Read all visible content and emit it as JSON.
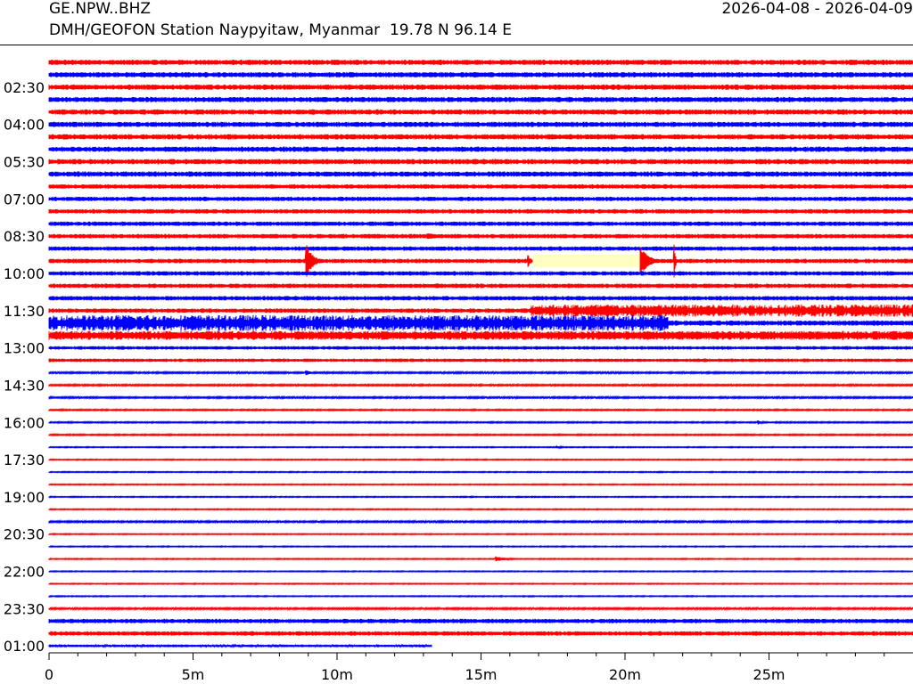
{
  "header": {
    "station_code": "GE.NPW..BHZ",
    "date_range": "2026-04-08 - 2026-04-09",
    "station_description": "DMH/GEOFON Station Naypyitaw, Myanmar  19.78 N 96.14 E"
  },
  "colors": {
    "even_trace": "#ff0000",
    "odd_trace": "#0000ff",
    "gap_highlight": "#ffffc0",
    "axis": "#000000"
  },
  "chart_data": {
    "type": "line",
    "subtype": "helicorder",
    "title": "",
    "xlabel": "",
    "ylabel": "",
    "x_range_minutes": [
      0,
      30
    ],
    "x_ticks": [
      {
        "value": 0,
        "label": "0"
      },
      {
        "value": 5,
        "label": "5m"
      },
      {
        "value": 10,
        "label": "10m"
      },
      {
        "value": 15,
        "label": "15m"
      },
      {
        "value": 20,
        "label": "20m"
      },
      {
        "value": 25,
        "label": "25m"
      }
    ],
    "minor_tick_step_minutes": 1,
    "trace_count": 48,
    "last_trace_end_minutes": 13.3,
    "row_labels": [
      {
        "row": 2,
        "label": "02:30"
      },
      {
        "row": 5,
        "label": "04:00"
      },
      {
        "row": 8,
        "label": "05:30"
      },
      {
        "row": 11,
        "label": "07:00"
      },
      {
        "row": 14,
        "label": "08:30"
      },
      {
        "row": 17,
        "label": "10:00"
      },
      {
        "row": 20,
        "label": "11:30"
      },
      {
        "row": 23,
        "label": "13:00"
      },
      {
        "row": 26,
        "label": "14:30"
      },
      {
        "row": 29,
        "label": "16:00"
      },
      {
        "row": 32,
        "label": "17:30"
      },
      {
        "row": 35,
        "label": "19:00"
      },
      {
        "row": 38,
        "label": "20:30"
      },
      {
        "row": 41,
        "label": "22:00"
      },
      {
        "row": 44,
        "label": "23:30"
      },
      {
        "row": 47,
        "label": "01:00"
      }
    ],
    "noise_levels": [
      3,
      3,
      3,
      3,
      3,
      3,
      3,
      3,
      3,
      3,
      2.5,
      2.5,
      2.5,
      2.5,
      2.5,
      2.5,
      2.5,
      2.5,
      2.5,
      2.5,
      2.5,
      3,
      5,
      2,
      2,
      1,
      1,
      1,
      0.8,
      0.8,
      0.8,
      0.6,
      0.6,
      0.6,
      0.6,
      0.6,
      0.6,
      1,
      0.6,
      0.6,
      0.6,
      0.6,
      0.6,
      0.6,
      1,
      2.5,
      2.5,
      1.5
    ],
    "events": [
      {
        "row": 14,
        "start_min": 13.1,
        "end_min": 14.8,
        "amplitude": 4
      },
      {
        "row": 16,
        "start_min": 4.5,
        "end_min": 4.9,
        "amplitude": 4
      },
      {
        "row": 16,
        "start_min": 8.9,
        "end_min": 9.6,
        "amplitude": 22
      },
      {
        "row": 16,
        "start_min": 16.6,
        "end_min": 16.85,
        "amplitude": 12
      },
      {
        "row": 16,
        "start_min": 20.4,
        "end_min": 21.3,
        "amplitude": 26
      },
      {
        "row": 16,
        "start_min": 21.7,
        "end_min": 21.85,
        "amplitude": 20
      },
      {
        "row": 19,
        "start_min": 15.1,
        "end_min": 16.3,
        "amplitude": 3
      },
      {
        "row": 20,
        "start_min": 16.7,
        "end_min": 30,
        "amplitude": 7
      },
      {
        "row": 21,
        "start_min": 0,
        "end_min": 21.5,
        "amplitude": 9
      },
      {
        "row": 25,
        "start_min": 8.9,
        "end_min": 9.6,
        "amplitude": 3
      },
      {
        "row": 29,
        "start_min": 24.6,
        "end_min": 25.1,
        "amplitude": 3
      },
      {
        "row": 31,
        "start_min": 17.6,
        "end_min": 18.2,
        "amplitude": 2
      },
      {
        "row": 40,
        "start_min": 15.5,
        "end_min": 16.8,
        "amplitude": 3
      }
    ],
    "gaps": [
      {
        "row": 16,
        "start_min": 16.8,
        "end_min": 20.5
      }
    ]
  }
}
